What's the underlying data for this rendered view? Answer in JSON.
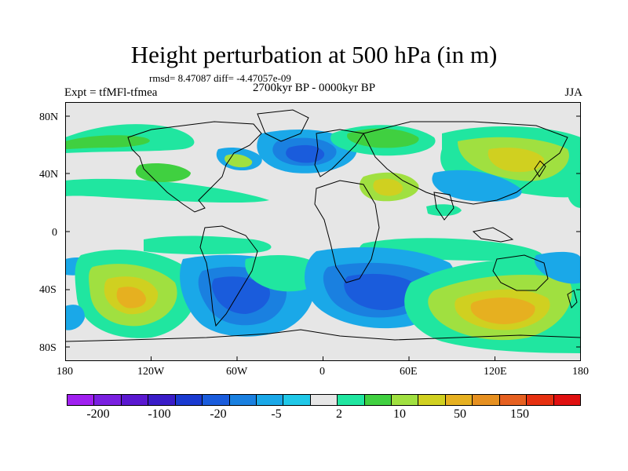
{
  "title": "Height perturbation at 500 hPa (in m)",
  "stats": "rmsd= 8.47087 diff= -4.47057e-09",
  "expt": "Expt = tfMFl-tfmea",
  "period": "2700kyr BP - 0000kyr BP",
  "season": "JJA",
  "lat_labels": [
    "80N",
    "40N",
    "0",
    "40S",
    "80S"
  ],
  "lon_labels": [
    "180",
    "120W",
    "60W",
    "0",
    "60E",
    "120E",
    "180"
  ],
  "colorbar": {
    "colors": [
      "#a020f0",
      "#7a20e0",
      "#5a18d0",
      "#3a1cc8",
      "#1a3ad0",
      "#1a5cdc",
      "#1a80e0",
      "#1aa8e8",
      "#20c8e8",
      "#e6e6e6",
      "#20e6a0",
      "#40d040",
      "#a0e040",
      "#d0d020",
      "#e6b020",
      "#e69020",
      "#e66020",
      "#e63010",
      "#e01010"
    ],
    "labels": [
      "-200",
      "-100",
      "-20",
      "-5",
      "2",
      "10",
      "50",
      "150"
    ]
  },
  "map_colors": {
    "ocean": "#e6e6e6",
    "coast": "#000000"
  }
}
